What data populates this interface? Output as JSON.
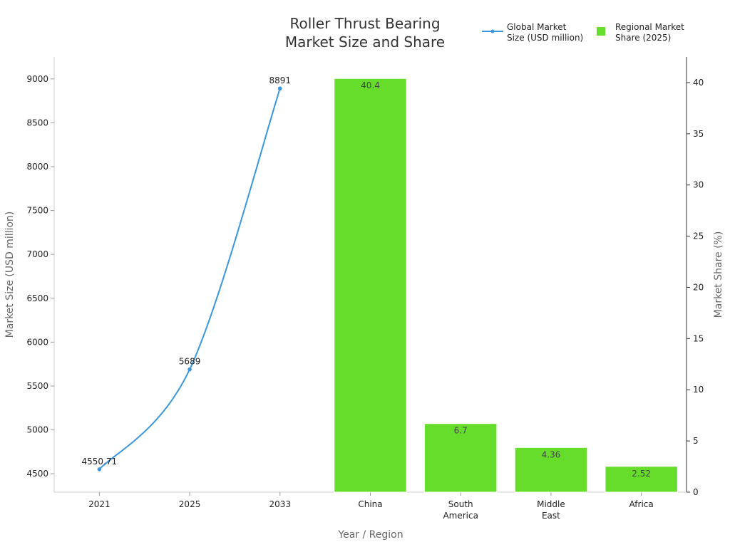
{
  "chart_data": {
    "type": "bar+line",
    "title_lines": [
      "Roller Thrust Bearing",
      "Market Size and Share"
    ],
    "xlabel": "Year / Region",
    "ylabel_left": "Market Size (USD million)",
    "ylabel_right": "Market Share (%)",
    "categories": [
      [
        "2021"
      ],
      [
        "2025"
      ],
      [
        "2033"
      ],
      [
        "China"
      ],
      [
        "South",
        "America"
      ],
      [
        "Middle",
        "East"
      ],
      [
        "Africa"
      ]
    ],
    "left_axis": {
      "min": 4290,
      "max": 9250,
      "ticks": [
        4500,
        5000,
        5500,
        6000,
        6500,
        7000,
        7500,
        8000,
        8500,
        9000
      ]
    },
    "right_axis": {
      "min": 0,
      "max": 42.5,
      "ticks": [
        0,
        5,
        10,
        15,
        20,
        25,
        30,
        35,
        40
      ]
    },
    "line_series": {
      "name_lines": [
        "Global Market",
        "Size (USD million)"
      ],
      "color": "#3a96dd",
      "x": [
        "2021",
        "2025",
        "2033"
      ],
      "values": [
        4550.71,
        5689,
        8891
      ],
      "labels": [
        "4550.71",
        "5689",
        "8891"
      ]
    },
    "bar_series": {
      "name_lines": [
        "Regional Market",
        "Share (2025)"
      ],
      "color": "#66dd2a",
      "x": [
        "China",
        "South America",
        "Middle East",
        "Africa"
      ],
      "values": [
        40.4,
        6.7,
        4.36,
        2.52
      ],
      "labels": [
        "40.4",
        "6.7",
        "4.36",
        "2.52"
      ]
    },
    "legend": "top-right",
    "grid": false
  }
}
